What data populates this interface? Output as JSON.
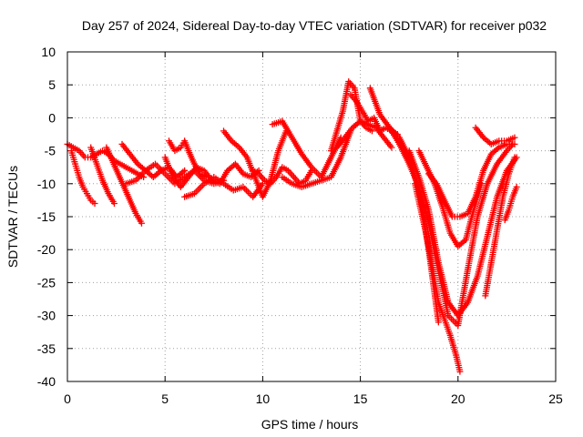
{
  "chart_data": {
    "type": "scatter",
    "title": "Day 257 of 2024, Sidereal Day-to-day VTEC variation (SDTVAR) for receiver p032",
    "xlabel": "GPS time / hours",
    "ylabel": "SDTVAR / TECUs",
    "xlim": [
      0,
      25
    ],
    "ylim": [
      -40,
      10
    ],
    "xticks": [
      0,
      5,
      10,
      15,
      20,
      25
    ],
    "yticks": [
      10,
      5,
      0,
      -5,
      -10,
      -15,
      -20,
      -25,
      -30,
      -35,
      -40
    ],
    "grid": true,
    "legend": "none",
    "marker": "+",
    "color": "#ff0000",
    "series": [
      {
        "x": [
          0.0,
          0.3,
          0.6,
          0.9,
          1.2,
          1.5,
          1.8,
          2.1,
          2.4,
          2.7,
          3.0,
          3.3,
          3.6,
          3.9
        ],
        "y": [
          -4,
          -4.5,
          -5,
          -6,
          -6,
          -5.5,
          -5,
          -5.5,
          -6.5,
          -7,
          -7.5,
          -8,
          -8.5,
          -9
        ]
      },
      {
        "x": [
          0.2,
          0.4,
          0.6,
          0.8,
          1.0,
          1.2,
          1.4
        ],
        "y": [
          -5,
          -7,
          -9,
          -10.5,
          -11.5,
          -12.5,
          -13
        ]
      },
      {
        "x": [
          1.2,
          1.5,
          1.8,
          2.1,
          2.4
        ],
        "y": [
          -4.5,
          -7,
          -9.5,
          -11.5,
          -13
        ]
      },
      {
        "x": [
          2.0,
          2.3,
          2.6,
          2.9,
          3.2,
          3.5,
          3.8
        ],
        "y": [
          -4.5,
          -6.5,
          -8.5,
          -10.5,
          -12.5,
          -14.5,
          -16
        ]
      },
      {
        "x": [
          2.8,
          3.2,
          3.6,
          4.0,
          4.4,
          4.8,
          5.2,
          5.6,
          6.0
        ],
        "y": [
          -4,
          -5.5,
          -7,
          -8,
          -9,
          -8,
          -7.5,
          -9,
          -8
        ]
      },
      {
        "x": [
          3.0,
          3.5,
          4.0,
          4.5,
          5.0,
          5.5,
          6.0,
          6.5,
          7.0,
          7.5,
          8.0
        ],
        "y": [
          -10,
          -9.5,
          -8,
          -7,
          -8.5,
          -10,
          -9,
          -8,
          -9.5,
          -10,
          -9.5
        ]
      },
      {
        "x": [
          5.0,
          5.4,
          5.8,
          6.2,
          6.6,
          7.0,
          7.4,
          7.8,
          8.2,
          8.6,
          9.0,
          9.4,
          9.8
        ],
        "y": [
          -6,
          -9,
          -10.5,
          -9,
          -7.5,
          -8,
          -9.5,
          -10,
          -8,
          -7,
          -8.5,
          -9,
          -8
        ]
      },
      {
        "x": [
          5.2,
          5.5,
          5.8,
          6.0,
          6.2,
          6.5,
          6.8,
          7.1
        ],
        "y": [
          -3.5,
          -5,
          -4.5,
          -3.5,
          -5,
          -7,
          -8.5,
          -9
        ]
      },
      {
        "x": [
          6.0,
          6.5,
          7.0,
          7.5,
          8.0,
          8.5,
          9.0,
          9.5,
          10.0
        ],
        "y": [
          -12,
          -11.5,
          -10,
          -9,
          -10,
          -11,
          -10.5,
          -12,
          -10
        ]
      },
      {
        "x": [
          8.0,
          8.4,
          8.8,
          9.2,
          9.6,
          10.0,
          10.4,
          10.8,
          11.2
        ],
        "y": [
          -2,
          -3.5,
          -4.5,
          -6,
          -9,
          -12,
          -9.5,
          -5,
          -2
        ]
      },
      {
        "x": [
          9.5,
          9.8,
          10.1,
          10.4,
          10.7,
          11.0,
          11.3,
          11.6,
          11.9,
          12.2,
          12.5
        ],
        "y": [
          -8,
          -8.5,
          -9.5,
          -10,
          -9,
          -7.5,
          -8,
          -9,
          -10,
          -9.5,
          -8
        ]
      },
      {
        "x": [
          10.5,
          11.0,
          11.5,
          12.0,
          12.5,
          13.0,
          13.5,
          14.0
        ],
        "y": [
          -1,
          -0.5,
          -3,
          -5.5,
          -7.5,
          -9,
          -6,
          -3
        ]
      },
      {
        "x": [
          11.0,
          11.5,
          12.0,
          12.5,
          13.0,
          13.5,
          14.0,
          14.5
        ],
        "y": [
          -9,
          -10,
          -10.5,
          -10,
          -9.5,
          -9,
          -6,
          -2
        ]
      },
      {
        "x": [
          13.5,
          13.8,
          14.1,
          14.4,
          14.7,
          15.0,
          15.3,
          15.6
        ],
        "y": [
          -5,
          -2,
          1,
          5.5,
          4.5,
          -0.5,
          -1.5,
          -2
        ]
      },
      {
        "x": [
          13.8,
          14.2,
          14.6,
          15.0,
          15.4,
          15.8,
          16.2,
          16.6
        ],
        "y": [
          -4.5,
          -3,
          -1.5,
          -0.5,
          -1,
          -1.5,
          -3,
          -4.5
        ]
      },
      {
        "x": [
          14.5,
          14.8,
          15.1,
          15.4,
          15.7,
          16.0,
          16.3,
          16.6,
          16.9
        ],
        "y": [
          3.5,
          2.5,
          1,
          -0.5,
          0,
          -2,
          -1.5,
          -2,
          -2.5
        ]
      },
      {
        "x": [
          15.5,
          16.0,
          16.5,
          17.0,
          17.5,
          18.0,
          18.5,
          19.0
        ],
        "y": [
          4.5,
          0.5,
          -1.5,
          -3,
          -6,
          -11,
          -20,
          -31
        ]
      },
      {
        "x": [
          16.5,
          17.0,
          17.5,
          18.0,
          18.5,
          19.0,
          19.5,
          20.0,
          20.5,
          21.0,
          21.5,
          22.0,
          22.5,
          22.8
        ],
        "y": [
          -1.5,
          -4,
          -7,
          -10.5,
          -16,
          -23,
          -30,
          -31.5,
          -23,
          -15,
          -10,
          -7,
          -5,
          -4
        ]
      },
      {
        "x": [
          17.5,
          18.0,
          18.5,
          19.0,
          19.5,
          20.0,
          20.5,
          21.0,
          21.5,
          22.0,
          22.5,
          23.0
        ],
        "y": [
          -5,
          -9,
          -14,
          -22,
          -28,
          -30,
          -28,
          -24,
          -18,
          -12,
          -8,
          -6
        ]
      },
      {
        "x": [
          17.8,
          18.1,
          18.4,
          18.7,
          19.0,
          19.3,
          19.6,
          19.9,
          20.1
        ],
        "y": [
          -10,
          -14,
          -18,
          -23,
          -28,
          -30.5,
          -33,
          -36,
          -38.5
        ]
      },
      {
        "x": [
          18.0,
          18.4,
          18.8,
          19.2,
          19.6,
          20.0,
          20.4,
          20.8,
          21.2
        ],
        "y": [
          -5,
          -7.5,
          -10,
          -13.5,
          -17.5,
          -19.5,
          -18.5,
          -14,
          -10
        ]
      },
      {
        "x": [
          18.5,
          18.9,
          19.3,
          19.7,
          20.1,
          20.5,
          20.9,
          21.3,
          21.7,
          22.1,
          22.5,
          22.9
        ],
        "y": [
          -8.5,
          -10,
          -12.5,
          -15,
          -15,
          -14.5,
          -12,
          -8,
          -5.5,
          -4.5,
          -4,
          -4
        ]
      },
      {
        "x": [
          20.9,
          21.3,
          21.7,
          22.1,
          22.5,
          22.9
        ],
        "y": [
          -1.5,
          -3,
          -4,
          -3.5,
          -3.5,
          -3
        ]
      },
      {
        "x": [
          21.4,
          21.7,
          22.0,
          22.3,
          22.6,
          22.9
        ],
        "y": [
          -27,
          -22,
          -17,
          -12,
          -8.5,
          -6
        ]
      },
      {
        "x": [
          22.4,
          22.6,
          22.8,
          23.0
        ],
        "y": [
          -15.5,
          -14,
          -12,
          -10.5
        ]
      }
    ]
  }
}
